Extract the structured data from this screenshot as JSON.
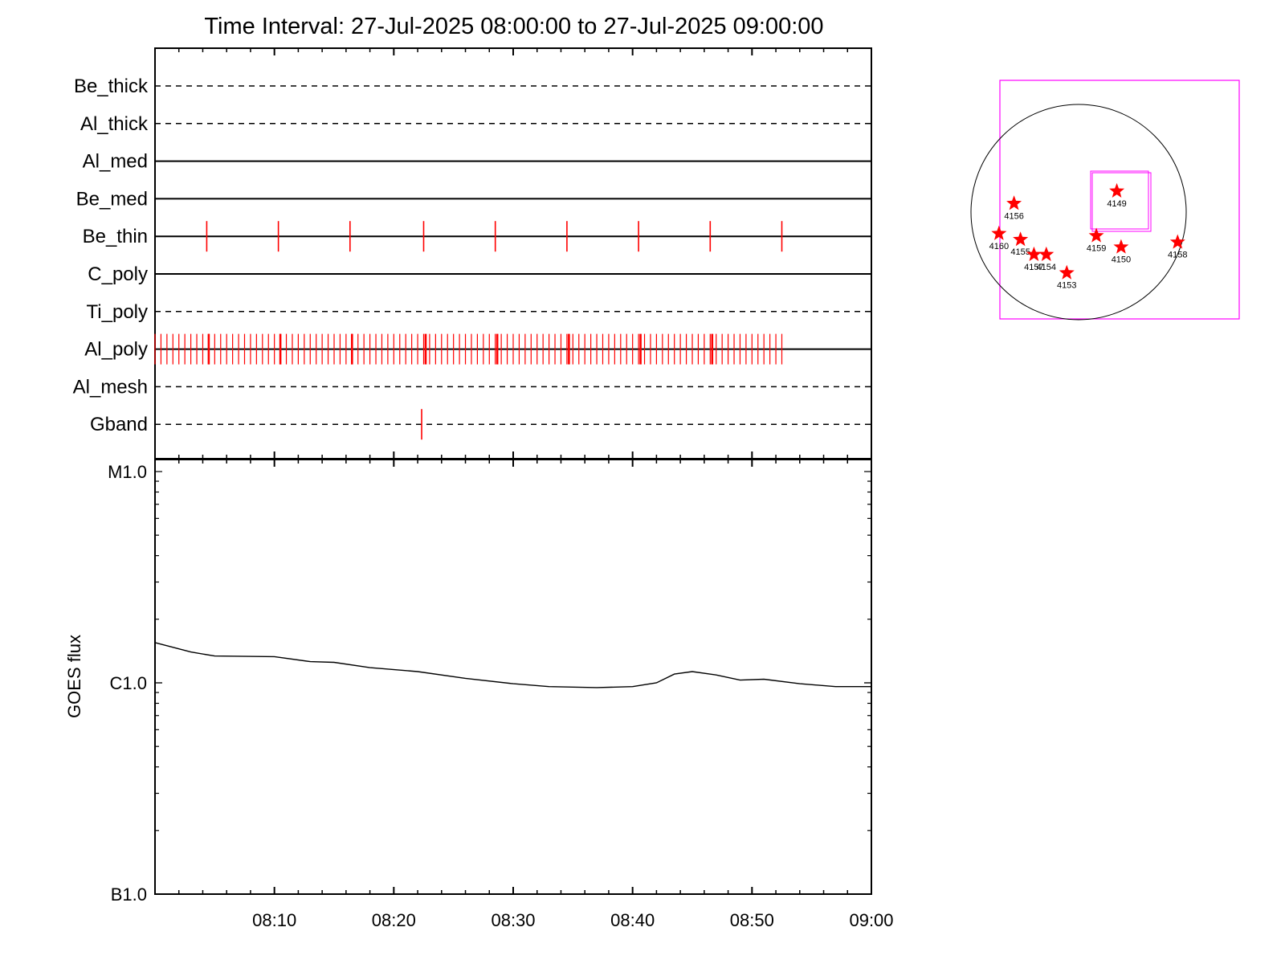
{
  "title": "Time Interval: 27-Jul-2025 08:00:00 to 27-Jul-2025 09:00:00",
  "colors": {
    "axes": "#000000",
    "event_marks": "#ff0000",
    "fov_box": "#ff00ff",
    "star": "#ff0000",
    "flux_line": "#000000"
  },
  "chart_data": [
    {
      "type": "line",
      "name": "filter-timeline",
      "x_range": [
        "08:00:00",
        "09:00:00"
      ],
      "channels": [
        {
          "name": "Be_thick",
          "line": "dashed",
          "events": []
        },
        {
          "name": "Al_thick",
          "line": "dashed",
          "events": []
        },
        {
          "name": "Al_med",
          "line": "solid",
          "events": []
        },
        {
          "name": "Be_med",
          "line": "solid",
          "events": []
        },
        {
          "name": "Be_thin",
          "line": "solid",
          "events": [
            "08:04:20",
            "08:10:20",
            "08:16:20",
            "08:22:30",
            "08:28:30",
            "08:34:30",
            "08:40:30",
            "08:46:30",
            "08:52:30"
          ]
        },
        {
          "name": "C_poly",
          "line": "solid",
          "events": []
        },
        {
          "name": "Ti_poly",
          "line": "dashed",
          "events": []
        },
        {
          "name": "Al_poly",
          "line": "solid",
          "events": "dense",
          "dense_range": [
            "08:00:00",
            "08:52:30"
          ],
          "dense_interval_s": 30,
          "major_events": [
            "08:04:30",
            "08:10:30",
            "08:16:30",
            "08:22:40",
            "08:28:40",
            "08:34:40",
            "08:40:40",
            "08:46:40"
          ]
        },
        {
          "name": "Al_mesh",
          "line": "dashed",
          "events": []
        },
        {
          "name": "Gband",
          "line": "dashed",
          "events": [
            "08:22:20"
          ]
        }
      ],
      "xticks": [
        "08:10",
        "08:20",
        "08:30",
        "08:40",
        "08:50",
        "09:00"
      ]
    },
    {
      "type": "line",
      "name": "goes-flux",
      "ylabel": "GOES flux",
      "yscale": "log",
      "ylim": [
        1e-07,
        1e-05
      ],
      "yticks": [
        {
          "label": "B1.0",
          "value": 1e-07
        },
        {
          "label": "C1.0",
          "value": 1e-06
        },
        {
          "label": "M1.0",
          "value": 1e-05
        }
      ],
      "x_range": [
        "08:00",
        "09:00"
      ],
      "xticks": [
        "08:10",
        "08:20",
        "08:30",
        "08:40",
        "08:50",
        "09:00"
      ],
      "series": [
        {
          "x_min": [
            0,
            3,
            5,
            10,
            13,
            15,
            18,
            22,
            26,
            30,
            33,
            37,
            40,
            42,
            43.5,
            45,
            47,
            49,
            51,
            54,
            57,
            60
          ],
          "y": [
            1.55e-06,
            1.4e-06,
            1.34e-06,
            1.33e-06,
            1.26e-06,
            1.25e-06,
            1.18e-06,
            1.13e-06,
            1.05e-06,
            9.9e-07,
            9.6e-07,
            9.5e-07,
            9.6e-07,
            1e-06,
            1.1e-06,
            1.13e-06,
            1.09e-06,
            1.03e-06,
            1.04e-06,
            9.9e-07,
            9.6e-07,
            9.6e-07
          ]
        }
      ]
    },
    {
      "type": "scatter",
      "name": "sun-map",
      "points": [
        {
          "label": "4149",
          "x": 355,
          "y": 195
        },
        {
          "label": "4156",
          "x": -600,
          "y": 80
        },
        {
          "label": "4160",
          "x": -740,
          "y": -200
        },
        {
          "label": "4155",
          "x": -540,
          "y": -255
        },
        {
          "label": "4157",
          "x": -415,
          "y": -395
        },
        {
          "label": "4154",
          "x": -300,
          "y": -395
        },
        {
          "label": "4153",
          "x": -110,
          "y": -565
        },
        {
          "label": "4159",
          "x": 165,
          "y": -220
        },
        {
          "label": "4150",
          "x": 395,
          "y": -325
        },
        {
          "label": "4158",
          "x": 920,
          "y": -280
        }
      ]
    }
  ]
}
